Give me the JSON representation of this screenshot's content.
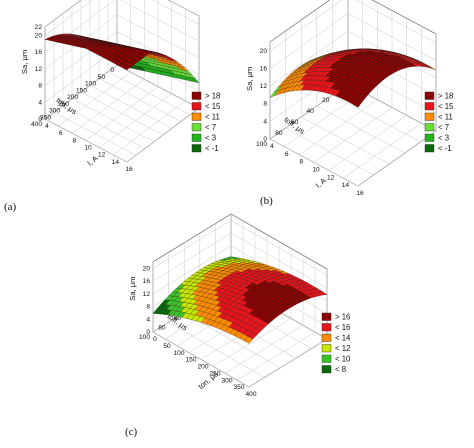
{
  "chart_data": [
    {
      "type": "surface",
      "panel_label": "(a)",
      "zlabel": "Sa, μm",
      "xlabel": "ton, μs",
      "ylabel": "I, A",
      "z_ticks": [
        "0",
        "4",
        "8",
        "12",
        "16",
        "20",
        "22"
      ],
      "x_ticks": [
        "0",
        "50",
        "100",
        "150",
        "200",
        "250",
        "300",
        "350",
        "400"
      ],
      "y_ticks": [
        "4",
        "6",
        "8",
        "10",
        "12",
        "14",
        "16"
      ],
      "zlim": [
        0,
        22
      ],
      "xlim": [
        0,
        400
      ],
      "ylim": [
        4,
        16
      ],
      "z_function": "-2 + 0.0855*x - 0.000095*x^2 + 0.5*y",
      "legend": [
        {
          "label": "> 18",
          "color": "#8b0000"
        },
        {
          "label": "< 15",
          "color": "#e8141a"
        },
        {
          "label": "< 11",
          "color": "#ff8c00"
        },
        {
          "label": "< 7",
          "color": "#66e034"
        },
        {
          "label": "< 3",
          "color": "#22b41a"
        },
        {
          "label": "< -1",
          "color": "#0a6a0a"
        }
      ]
    },
    {
      "type": "surface",
      "panel_label": "(b)",
      "zlabel": "Sa, μm",
      "xlabel": "toff, μs",
      "ylabel": "I, A",
      "z_ticks": [
        "0",
        "4",
        "8",
        "12",
        "16",
        "20"
      ],
      "x_ticks": [
        "0",
        "20",
        "40",
        "60",
        "80",
        "100"
      ],
      "y_ticks": [
        "4",
        "6",
        "8",
        "10",
        "12",
        "14",
        "16"
      ],
      "zlim": [
        0,
        22
      ],
      "xlim": [
        0,
        100
      ],
      "ylim": [
        4,
        16
      ],
      "z_function": "-2.2 + 0.2*x - 0.0016*x^2 + 2.2*y - 0.075*y^2",
      "legend": [
        {
          "label": "> 18",
          "color": "#8b0000"
        },
        {
          "label": "< 15",
          "color": "#e8141a"
        },
        {
          "label": "< 11",
          "color": "#ff8c00"
        },
        {
          "label": "< 7",
          "color": "#66e034"
        },
        {
          "label": "< 3",
          "color": "#22b41a"
        },
        {
          "label": "< -1",
          "color": "#0a6a0a"
        }
      ]
    },
    {
      "type": "surface",
      "panel_label": "(c)",
      "zlabel": "Sa, μm",
      "xlabel": "toff, μs",
      "ylabel": "ton, μs",
      "z_ticks": [
        "0",
        "4",
        "8",
        "12",
        "16",
        "20"
      ],
      "x_ticks": [
        "0",
        "20",
        "40",
        "60",
        "80",
        "100"
      ],
      "y_ticks": [
        "0",
        "50",
        "100",
        "150",
        "200",
        "250",
        "300",
        "350",
        "400"
      ],
      "zlim": [
        0,
        22
      ],
      "xlim": [
        0,
        100
      ],
      "ylim": [
        0,
        400
      ],
      "z_function": "8.6 + 0.096*x - 0.00124*x^2 + 0.0327*y - 0.000048*y^2 + 0.000062*x*y",
      "legend": [
        {
          "label": "> 16",
          "color": "#8b0000"
        },
        {
          "label": "< 16",
          "color": "#e8141a"
        },
        {
          "label": "< 14",
          "color": "#ff8c00"
        },
        {
          "label": "< 12",
          "color": "#c8e600"
        },
        {
          "label": "< 10",
          "color": "#3ec22a"
        },
        {
          "label": "< 8",
          "color": "#0a6a0a"
        }
      ]
    }
  ]
}
